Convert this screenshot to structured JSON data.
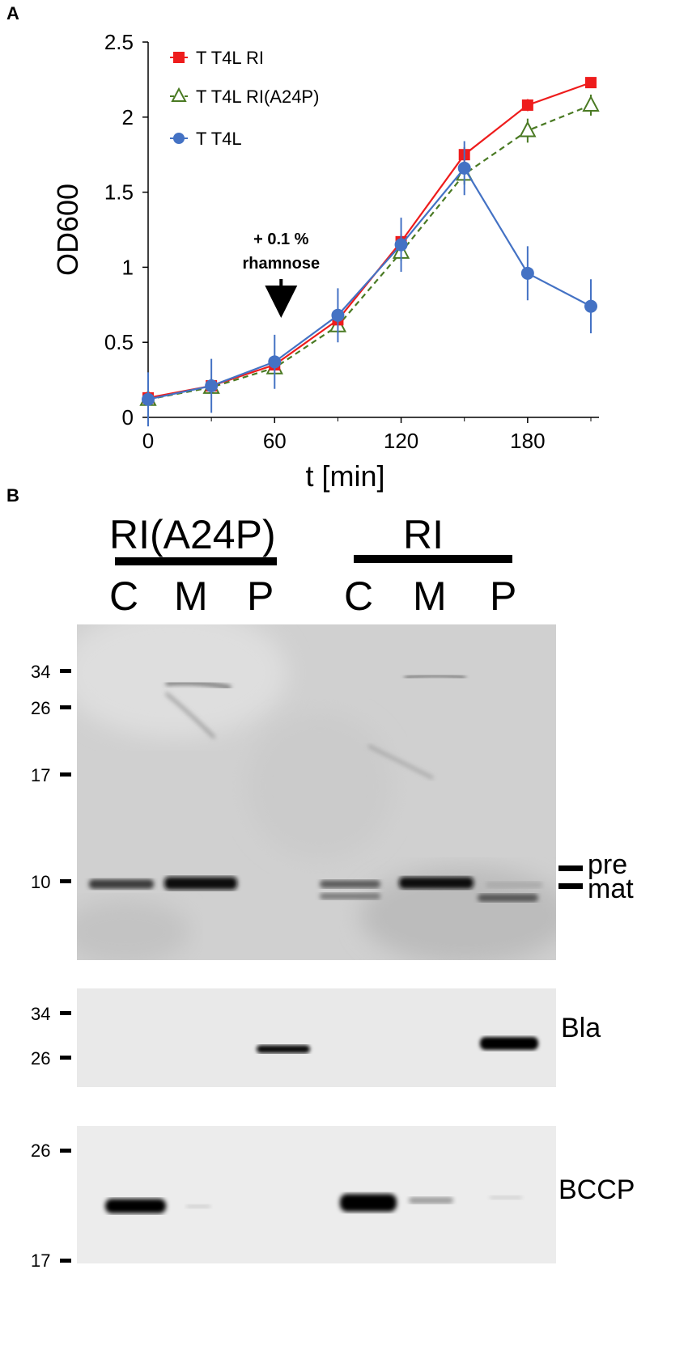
{
  "panel_a": {
    "label": "A",
    "chart_data": {
      "type": "line",
      "xlabel": "t [min]",
      "ylabel": "OD600",
      "xticks": [
        "0",
        "60",
        "120",
        "180"
      ],
      "yticks": [
        "0",
        "0.5",
        "1",
        "1.5",
        "2",
        "2.5"
      ],
      "xlim": [
        0,
        210
      ],
      "ylim": [
        0,
        2.5
      ],
      "grid": false,
      "legend_position": "top-left",
      "annotation": {
        "line1": "+ 0.1 %",
        "line2": "rhamnose",
        "x": 60
      },
      "series": [
        {
          "name": "T T4L RI",
          "color": "#ee1c1c",
          "marker": "square",
          "dash": false,
          "x": [
            0,
            30,
            60,
            90,
            120,
            150,
            180,
            210
          ],
          "y": [
            0.13,
            0.21,
            0.35,
            0.65,
            1.17,
            1.75,
            2.08,
            2.23
          ],
          "err": [
            0.03,
            0.03,
            0.04,
            0.05,
            0.05,
            0.05,
            0.04,
            0.03
          ]
        },
        {
          "name": "T T4L RI(A24P)",
          "color": "#4a7a23",
          "marker": "triangle-open",
          "dash": true,
          "x": [
            0,
            30,
            60,
            90,
            120,
            150,
            180,
            210
          ],
          "y": [
            0.12,
            0.2,
            0.33,
            0.61,
            1.1,
            1.62,
            1.91,
            2.08
          ],
          "err": [
            0.03,
            0.03,
            0.04,
            0.05,
            0.06,
            0.07,
            0.08,
            0.07
          ]
        },
        {
          "name": "T T4L",
          "color": "#4472c4",
          "marker": "circle",
          "dash": false,
          "x": [
            0,
            30,
            60,
            90,
            120,
            150,
            180,
            210
          ],
          "y": [
            0.12,
            0.21,
            0.37,
            0.68,
            1.15,
            1.66,
            0.96,
            0.74
          ],
          "err": [
            0.18,
            0.18,
            0.18,
            0.18,
            0.18,
            0.18,
            0.18,
            0.18
          ]
        }
      ]
    }
  },
  "panel_b": {
    "label": "B",
    "groups": [
      {
        "name": "RI(A24P)",
        "lanes": [
          "C",
          "M",
          "P"
        ]
      },
      {
        "name": "RI",
        "lanes": [
          "C",
          "M",
          "P"
        ]
      }
    ],
    "blots": [
      {
        "markers": [
          "34",
          "26",
          "17",
          "10"
        ],
        "band_labels": [
          "pre",
          "mat"
        ]
      },
      {
        "markers": [
          "34",
          "26"
        ],
        "label": "Bla"
      },
      {
        "markers": [
          "26",
          "17"
        ],
        "label": "BCCP"
      }
    ]
  }
}
